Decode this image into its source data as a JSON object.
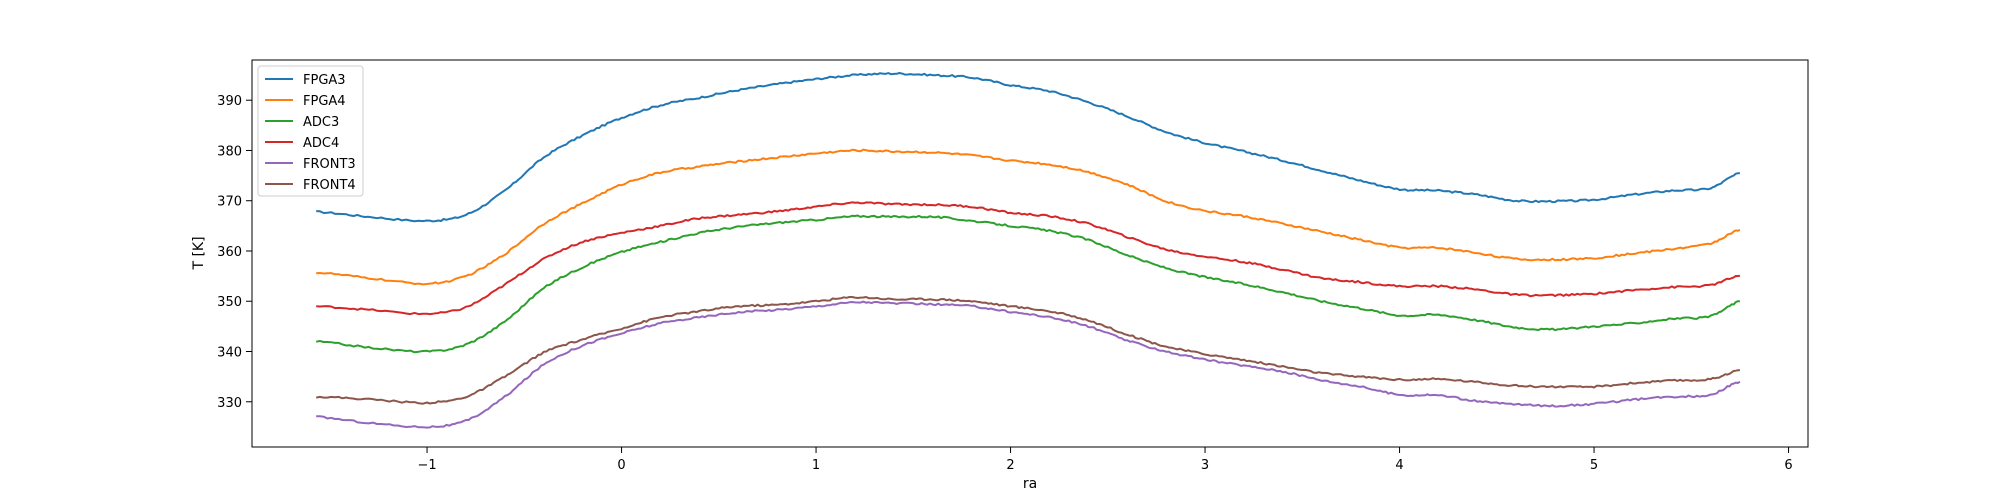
{
  "chart_data": {
    "type": "line",
    "xlabel": "ra",
    "ylabel": "T [K]",
    "xlim": [
      -1.9,
      6.1
    ],
    "ylim": [
      321,
      398
    ],
    "xticks": [
      -1,
      0,
      1,
      2,
      3,
      4,
      5,
      6
    ],
    "xtick_labels": [
      "−1",
      "0",
      "1",
      "2",
      "3",
      "4",
      "5",
      "6"
    ],
    "yticks": [
      330,
      340,
      350,
      360,
      370,
      380,
      390
    ],
    "ytick_labels": [
      "330",
      "340",
      "350",
      "360",
      "370",
      "380",
      "390"
    ],
    "grid": false,
    "legend_position": "upper-left",
    "x": [
      -1.57,
      -1.3,
      -1.0,
      -0.8,
      -0.6,
      -0.4,
      -0.2,
      0.0,
      0.2,
      0.4,
      0.6,
      0.8,
      1.0,
      1.2,
      1.4,
      1.6,
      1.8,
      2.0,
      2.2,
      2.4,
      2.6,
      2.8,
      3.0,
      3.2,
      3.4,
      3.6,
      3.8,
      4.0,
      4.2,
      4.4,
      4.6,
      4.8,
      5.0,
      5.2,
      5.4,
      5.6,
      5.75
    ],
    "series": [
      {
        "name": "FPGA3",
        "color": "#1f77b4",
        "values": [
          367.8,
          366.8,
          366.0,
          367.2,
          372.0,
          378.6,
          383.0,
          386.5,
          389.0,
          390.5,
          392.0,
          393.2,
          394.2,
          395.0,
          395.3,
          395.0,
          394.5,
          393.0,
          391.8,
          389.6,
          386.8,
          383.7,
          381.5,
          379.8,
          378.0,
          376.0,
          374.0,
          372.3,
          372.0,
          371.2,
          370.0,
          369.9,
          370.2,
          371.2,
          372.0,
          372.5,
          375.5
        ]
      },
      {
        "name": "FPGA4",
        "color": "#ff7f0e",
        "values": [
          355.7,
          354.6,
          353.5,
          355.0,
          359.4,
          365.4,
          369.5,
          373.2,
          375.6,
          376.8,
          377.8,
          378.6,
          379.4,
          380.0,
          379.8,
          379.6,
          379.0,
          378.0,
          377.2,
          375.7,
          373.2,
          369.9,
          368.0,
          366.9,
          365.4,
          363.8,
          362.2,
          360.7,
          360.6,
          359.6,
          358.4,
          358.3,
          358.6,
          359.5,
          360.4,
          361.5,
          364.2
        ]
      },
      {
        "name": "ADC3",
        "color": "#2ca02c",
        "values": [
          342.0,
          340.8,
          340.0,
          341.4,
          346.0,
          352.6,
          356.8,
          359.8,
          361.8,
          363.6,
          364.8,
          365.6,
          366.2,
          366.9,
          366.8,
          366.8,
          366.0,
          365.0,
          364.0,
          362.2,
          359.2,
          356.6,
          354.8,
          353.4,
          351.8,
          350.0,
          348.6,
          347.2,
          347.3,
          346.2,
          344.8,
          344.4,
          345.0,
          345.6,
          346.5,
          347.0,
          350.0
        ]
      },
      {
        "name": "ADC4",
        "color": "#d62728",
        "values": [
          349.0,
          348.3,
          347.5,
          348.8,
          353.3,
          358.4,
          361.8,
          363.6,
          365.0,
          366.5,
          367.2,
          367.9,
          368.8,
          369.6,
          369.3,
          369.2,
          368.8,
          367.6,
          366.9,
          365.4,
          362.8,
          360.3,
          358.9,
          357.8,
          356.3,
          354.6,
          353.8,
          353.0,
          353.0,
          352.3,
          351.3,
          351.2,
          351.5,
          352.2,
          352.8,
          353.2,
          355.1
        ]
      },
      {
        "name": "FRONT3",
        "color": "#9467bd",
        "values": [
          327.0,
          325.8,
          325.0,
          326.2,
          331.0,
          337.4,
          341.2,
          343.6,
          345.6,
          346.8,
          347.8,
          348.3,
          349.0,
          349.8,
          349.6,
          349.4,
          349.0,
          347.9,
          346.8,
          345.0,
          342.2,
          340.0,
          338.4,
          337.2,
          336.0,
          334.3,
          333.0,
          331.4,
          331.3,
          330.1,
          329.5,
          329.2,
          329.6,
          330.4,
          331.0,
          331.4,
          334.0
        ]
      },
      {
        "name": "FRONT4",
        "color": "#8c564b",
        "values": [
          331.0,
          330.5,
          329.8,
          331.0,
          335.0,
          339.8,
          342.4,
          344.6,
          346.8,
          348.0,
          349.0,
          349.3,
          350.0,
          350.8,
          350.4,
          350.4,
          350.0,
          349.0,
          348.0,
          346.2,
          343.4,
          341.0,
          339.5,
          338.3,
          337.0,
          335.7,
          335.0,
          334.4,
          334.5,
          333.9,
          333.2,
          333.0,
          333.0,
          333.7,
          334.2,
          334.5,
          336.3
        ]
      }
    ]
  }
}
